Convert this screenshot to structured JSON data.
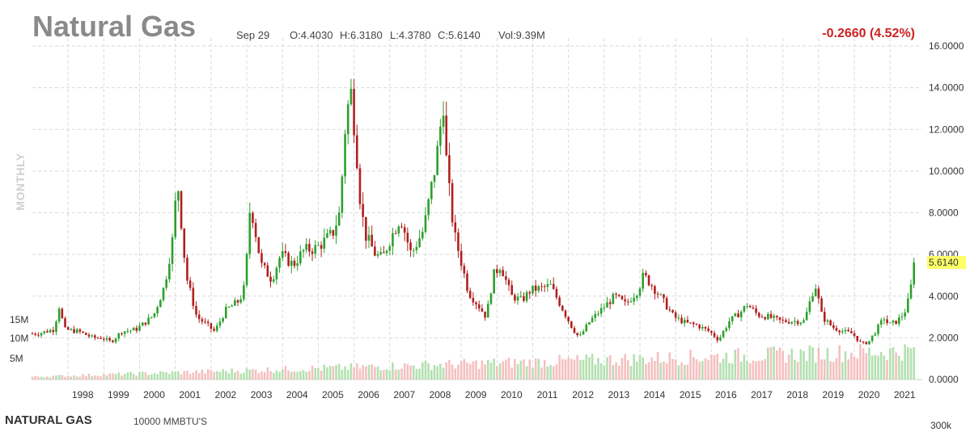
{
  "header": {
    "title": "Natural Gas",
    "date": "Sep 29",
    "open": "O:4.4030",
    "high": "H:6.3180",
    "low": "L:4.3780",
    "close": "C:5.6140",
    "volume": "Vol:9.39M",
    "change": "-0.2660 (4.52%)"
  },
  "period_label": "MONTHLY",
  "current_price_label": "5.6140",
  "bottom_panel": {
    "title": "NATURAL GAS",
    "unit": "10000 MMBTU'S",
    "right_label": "300k"
  },
  "colors": {
    "up": "#2ca02c",
    "down": "#b11f1f",
    "volume_up": "#b4e0b0",
    "volume_down": "#f5c0c0",
    "grid": "#d9d9d9",
    "price_highlight": "#ffff66",
    "change": "#cc2222"
  },
  "chart_data": {
    "type": "candlestick",
    "interval": "monthly",
    "y_axis": {
      "range": [
        0,
        16
      ],
      "ticks": [
        "16.0000",
        "14.0000",
        "12.0000",
        "10.0000",
        "8.0000",
        "6.0000",
        "4.0000",
        "2.0000",
        "0.0000"
      ]
    },
    "x_axis": {
      "ticks": [
        "1998",
        "1999",
        "2000",
        "2001",
        "2002",
        "2003",
        "2004",
        "2005",
        "2006",
        "2007",
        "2008",
        "2009",
        "2010",
        "2011",
        "2012",
        "2013",
        "2014",
        "2015",
        "2016",
        "2017",
        "2018",
        "2019",
        "2020",
        "2021"
      ]
    },
    "volume_axis": {
      "ticks": [
        "15M",
        "10M",
        "5M"
      ]
    },
    "grid": true,
    "last_close": 5.614,
    "close_anchors": [
      [
        1997.15,
        2.2
      ],
      [
        1997.6,
        2.4
      ],
      [
        1997.75,
        3.5
      ],
      [
        1997.9,
        2.4
      ],
      [
        1998.3,
        2.3
      ],
      [
        1998.7,
        2.0
      ],
      [
        1998.95,
        2.0
      ],
      [
        1999.2,
        1.8
      ],
      [
        1999.5,
        2.3
      ],
      [
        1999.9,
        2.4
      ],
      [
        2000.2,
        2.8
      ],
      [
        2000.4,
        3.1
      ],
      [
        2000.7,
        4.5
      ],
      [
        2000.95,
        7.0
      ],
      [
        2001.05,
        9.8
      ],
      [
        2001.3,
        5.0
      ],
      [
        2001.6,
        3.0
      ],
      [
        2001.9,
        2.6
      ],
      [
        2002.1,
        2.3
      ],
      [
        2002.4,
        3.3
      ],
      [
        2002.8,
        3.8
      ],
      [
        2002.95,
        4.5
      ],
      [
        2003.1,
        8.5
      ],
      [
        2003.4,
        5.5
      ],
      [
        2003.7,
        4.8
      ],
      [
        2003.95,
        6.0
      ],
      [
        2004.3,
        5.5
      ],
      [
        2004.6,
        6.2
      ],
      [
        2004.95,
        6.3
      ],
      [
        2005.4,
        7.0
      ],
      [
        2005.6,
        8.0
      ],
      [
        2005.75,
        12.0
      ],
      [
        2005.9,
        14.0
      ],
      [
        2006.05,
        11.5
      ],
      [
        2006.15,
        9.0
      ],
      [
        2006.3,
        7.0
      ],
      [
        2006.6,
        6.0
      ],
      [
        2006.8,
        5.8
      ],
      [
        2006.95,
        6.5
      ],
      [
        2007.3,
        7.8
      ],
      [
        2007.6,
        6.0
      ],
      [
        2007.95,
        7.2
      ],
      [
        2008.3,
        10.5
      ],
      [
        2008.5,
        13.3
      ],
      [
        2008.6,
        10.0
      ],
      [
        2008.8,
        7.0
      ],
      [
        2008.95,
        6.0
      ],
      [
        2009.2,
        4.2
      ],
      [
        2009.5,
        3.5
      ],
      [
        2009.7,
        3.0
      ],
      [
        2009.9,
        5.0
      ],
      [
        2010.1,
        5.5
      ],
      [
        2010.4,
        4.0
      ],
      [
        2010.7,
        3.8
      ],
      [
        2010.95,
        4.3
      ],
      [
        2011.3,
        4.4
      ],
      [
        2011.5,
        4.5
      ],
      [
        2011.8,
        3.5
      ],
      [
        2012.1,
        2.5
      ],
      [
        2012.3,
        2.0
      ],
      [
        2012.6,
        2.8
      ],
      [
        2012.95,
        3.4
      ],
      [
        2013.3,
        4.0
      ],
      [
        2013.6,
        3.6
      ],
      [
        2013.95,
        4.3
      ],
      [
        2014.1,
        5.0
      ],
      [
        2014.3,
        4.6
      ],
      [
        2014.6,
        3.9
      ],
      [
        2014.95,
        3.0
      ],
      [
        2015.3,
        2.7
      ],
      [
        2015.6,
        2.6
      ],
      [
        2015.95,
        2.3
      ],
      [
        2016.2,
        1.9
      ],
      [
        2016.5,
        2.8
      ],
      [
        2016.8,
        3.2
      ],
      [
        2017.0,
        3.6
      ],
      [
        2017.3,
        3.1
      ],
      [
        2017.6,
        3.0
      ],
      [
        2017.95,
        2.8
      ],
      [
        2018.3,
        2.8
      ],
      [
        2018.6,
        2.8
      ],
      [
        2018.9,
        4.6
      ],
      [
        2019.1,
        3.0
      ],
      [
        2019.4,
        2.5
      ],
      [
        2019.7,
        2.3
      ],
      [
        2019.95,
        2.2
      ],
      [
        2020.2,
        1.7
      ],
      [
        2020.4,
        1.8
      ],
      [
        2020.7,
        2.6
      ],
      [
        2020.85,
        3.0
      ],
      [
        2020.95,
        2.6
      ],
      [
        2021.2,
        2.8
      ],
      [
        2021.4,
        3.2
      ],
      [
        2021.55,
        4.0
      ],
      [
        2021.67,
        5.614
      ]
    ]
  }
}
